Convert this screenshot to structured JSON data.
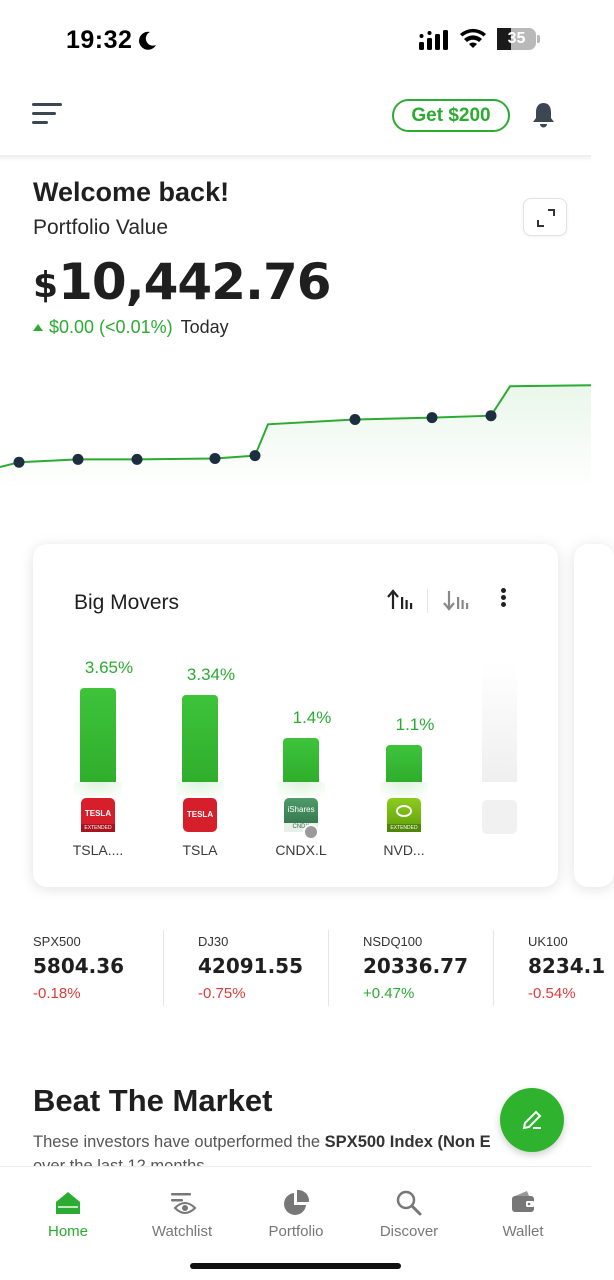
{
  "status_bar": {
    "time": "19:32",
    "battery_level": "35",
    "icons": [
      "moon-icon",
      "cellular-signal-icon",
      "wifi-icon",
      "battery-icon"
    ]
  },
  "header": {
    "menu_icon": "hamburger-menu-icon",
    "promo_button": "Get $200",
    "bell_icon": "bell-icon"
  },
  "portfolio": {
    "welcome": "Welcome back!",
    "label": "Portfolio Value",
    "currency": "$",
    "value": "10,442.76",
    "change": "$0.00 (<0.01%)",
    "period": "Today",
    "expand_icon": "expand-icon"
  },
  "chart_data": {
    "type": "line",
    "title": "",
    "xlabel": "",
    "ylabel": "",
    "points": [
      0.0,
      0.05,
      0.08,
      0.08,
      0.09,
      0.12,
      0.45,
      0.5,
      0.52,
      0.54,
      0.85,
      0.86
    ],
    "markers": [
      0,
      1,
      2,
      3,
      4,
      5,
      6,
      7,
      8
    ],
    "line_color": "#2bab32",
    "marker_color": "#1c2e40",
    "grid": false
  },
  "big_movers": {
    "title": "Big Movers",
    "sort_asc_icon": "sort-ascending-icon",
    "sort_desc_icon": "sort-descending-icon",
    "more_icon": "more-options-icon",
    "items": [
      {
        "ticker": "TSLA....",
        "pct": "3.65%",
        "value": 3.65,
        "logo": "TESLA",
        "logo_sub": "EXTENDED"
      },
      {
        "ticker": "TSLA",
        "pct": "3.34%",
        "value": 3.34,
        "logo": "TESLA",
        "logo_sub": ""
      },
      {
        "ticker": "CNDX.L",
        "pct": "1.4%",
        "value": 1.4,
        "logo": "iShares",
        "logo_sub": "CNDX"
      },
      {
        "ticker": "NVD...",
        "pct": "1.1%",
        "value": 1.1,
        "logo": "NVIDIA",
        "logo_sub": "EXTENDED"
      }
    ]
  },
  "indices": [
    {
      "name": "SPX500",
      "value": "5804.36",
      "change": "-0.18%",
      "direction": "down"
    },
    {
      "name": "DJ30",
      "value": "42091.55",
      "change": "-0.75%",
      "direction": "down"
    },
    {
      "name": "NSDQ100",
      "value": "20336.77",
      "change": "+0.47%",
      "direction": "up"
    },
    {
      "name": "UK100",
      "value": "8234.1",
      "change": "-0.54%",
      "direction": "down"
    }
  ],
  "beat_market": {
    "title": "Beat The Market",
    "subtitle_prefix": "These investors have outperformed the ",
    "subtitle_bold": "SPX500 Index (Non E",
    "subtitle_bold_tail": ")",
    "subtitle_line2": "over the last 12 months",
    "fab_icon": "edit-pencil-icon"
  },
  "bottom_nav": [
    {
      "label": "Home",
      "icon": "home-icon",
      "active": true
    },
    {
      "label": "Watchlist",
      "icon": "watchlist-eye-icon",
      "active": false
    },
    {
      "label": "Portfolio",
      "icon": "pie-chart-icon",
      "active": false
    },
    {
      "label": "Discover",
      "icon": "search-icon",
      "active": false
    },
    {
      "label": "Wallet",
      "icon": "wallet-icon",
      "active": false
    }
  ],
  "colors": {
    "accent_green": "#2bab32",
    "negative_red": "#e03a3a",
    "text_dark": "#1f1f1f"
  }
}
